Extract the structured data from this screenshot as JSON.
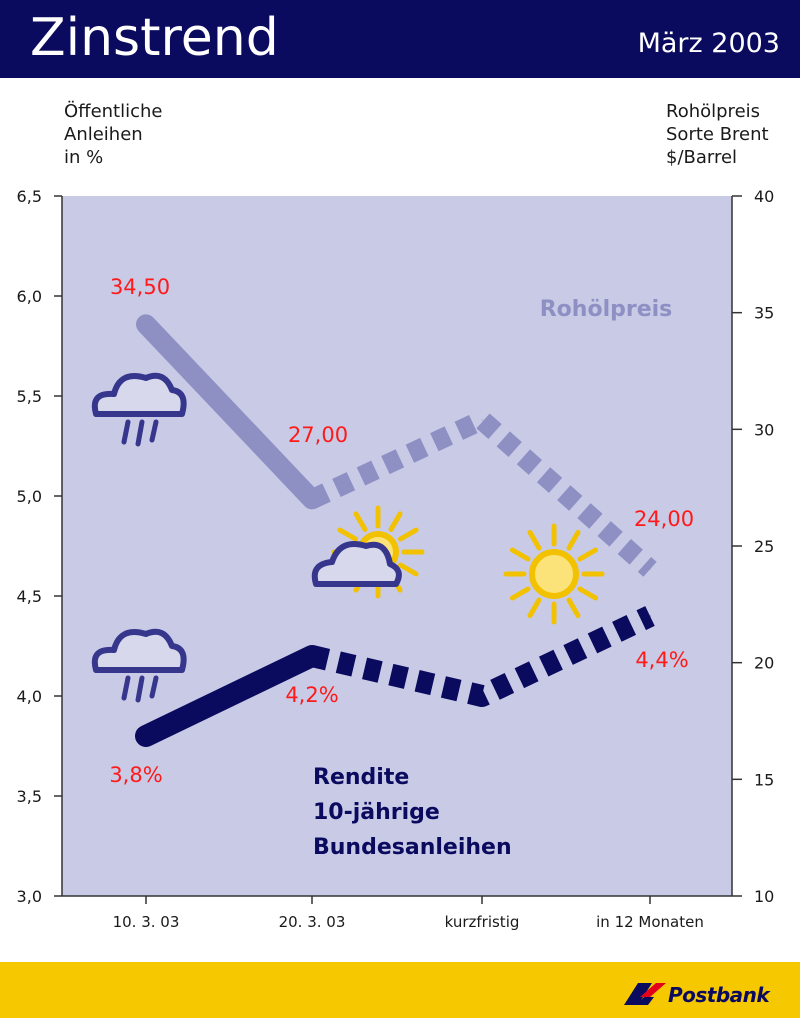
{
  "header": {
    "title": "Zinstrend",
    "date": "März 2003"
  },
  "left_axis_label": "Öffentliche\nAnleihen\nin %",
  "right_axis_label": "Rohölpreis\nSorte Brent\n$/Barrel",
  "chart_data": {
    "type": "line",
    "categories": [
      "10. 3. 03",
      "20. 3. 03",
      "kurzfristig",
      "in 12 Monaten"
    ],
    "y_left": {
      "ticks": [
        "6,5",
        "6,0",
        "5,5",
        "5,0",
        "4,5",
        "4,0",
        "3,5",
        "3,0"
      ],
      "ylim": [
        3.0,
        6.5
      ]
    },
    "y_right": {
      "ticks": [
        "40",
        "35",
        "30",
        "25",
        "20",
        "15",
        "10"
      ],
      "ylim": [
        10,
        40
      ]
    },
    "series": [
      {
        "name": "Rohölpreis",
        "axis": "right",
        "values": [
          34.5,
          27.0,
          30.4,
          24.0
        ],
        "labels": [
          "34,50",
          "27,00",
          "",
          "24,00"
        ],
        "color": "#8e90c4"
      },
      {
        "name": "Rendite\n10-jährige\nBundesanleihen",
        "axis": "left",
        "values": [
          3.8,
          4.2,
          4.0,
          4.4
        ],
        "labels": [
          "3,8%",
          "4,2%",
          "",
          "4,4%"
        ],
        "color": "#0a0a5e"
      }
    ],
    "weather_icons": [
      "rain-cloud-icon",
      "rain-cloud-icon",
      "sun-behind-cloud-icon",
      "sun-icon"
    ],
    "plot_background": "#c9cae6",
    "label_color": "#ff1a1a"
  },
  "footer": {
    "brand": "Postbank",
    "color": "#f5c800"
  }
}
